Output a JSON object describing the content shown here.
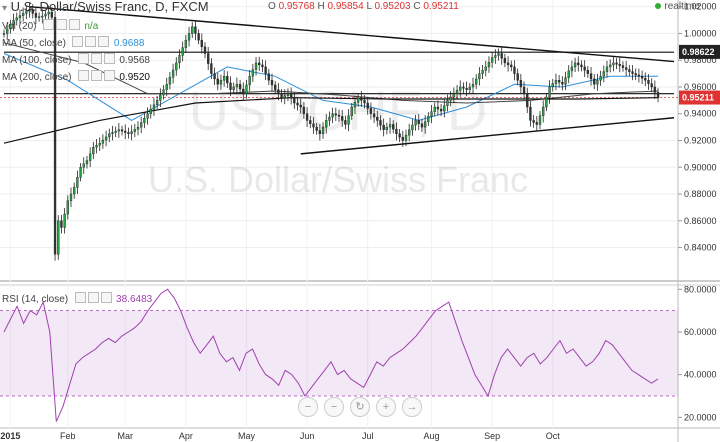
{
  "header": {
    "symbol_line": "U.S. Dollar/Swiss Franc, D, FXCM",
    "ohlc": [
      {
        "k": "O",
        "v": "0.95768"
      },
      {
        "k": "H",
        "v": "0.95854"
      },
      {
        "k": "L",
        "v": "0.95203"
      },
      {
        "k": "C",
        "v": "0.95211"
      }
    ],
    "realtime": "realtime"
  },
  "indicators": [
    {
      "label": "Vol (20)",
      "value": "n/a",
      "color": "#3a9a3a"
    },
    {
      "label": "MA (50, close)",
      "value": "0.9688",
      "color": "#2f8fd8"
    },
    {
      "label": "MA (100, close)",
      "value": "0.9568",
      "color": "#444444"
    },
    {
      "label": "MA (200, close)",
      "value": "0.9520",
      "color": "#111111"
    }
  ],
  "rsi": {
    "label": "RSI (14, close)",
    "value": "38.6483",
    "color": "#a040b0"
  },
  "watermark": {
    "symbol": "USDCHF, D",
    "name": "U.S. Dollar/Swiss Franc"
  },
  "last_price_tag": "0.95211",
  "resistance_tag": "0.98622",
  "nav_buttons": [
    "−",
    "−",
    "↻",
    "+",
    "→"
  ],
  "chart_data": [
    {
      "type": "candlestick",
      "title": "U.S. Dollar/Swiss Franc, D, FXCM",
      "x_axis_labels": [
        "2015",
        "Feb",
        "Mar",
        "Apr",
        "May",
        "Jun",
        "Jul",
        "Aug",
        "Sep",
        "Oct"
      ],
      "y_ticks": [
        "1.02000",
        "1.00000",
        "0.98000",
        "0.96000",
        "0.94000",
        "0.92000",
        "0.90000",
        "0.88000",
        "0.86000",
        "0.84000"
      ],
      "ylim": [
        0.815,
        1.025
      ],
      "path": [
        [
          0,
          1.0
        ],
        [
          3,
          1.01
        ],
        [
          6,
          1.015
        ],
        [
          8,
          1.018
        ],
        [
          10,
          1.012
        ],
        [
          12,
          1.013
        ],
        [
          14,
          1.016
        ],
        [
          15,
          1.012
        ],
        [
          16,
          0.835
        ],
        [
          17,
          0.86
        ],
        [
          18,
          0.855
        ],
        [
          20,
          0.875
        ],
        [
          22,
          0.885
        ],
        [
          24,
          0.9
        ],
        [
          26,
          0.905
        ],
        [
          28,
          0.915
        ],
        [
          30,
          0.918
        ],
        [
          33,
          0.925
        ],
        [
          36,
          0.928
        ],
        [
          39,
          0.925
        ],
        [
          42,
          0.93
        ],
        [
          45,
          0.94
        ],
        [
          48,
          0.95
        ],
        [
          51,
          0.962
        ],
        [
          54,
          0.978
        ],
        [
          57,
          0.995
        ],
        [
          59,
          1.005
        ],
        [
          61,
          0.995
        ],
        [
          63,
          0.985
        ],
        [
          65,
          0.97
        ],
        [
          67,
          0.962
        ],
        [
          69,
          0.968
        ],
        [
          71,
          0.958
        ],
        [
          73,
          0.962
        ],
        [
          75,
          0.955
        ],
        [
          77,
          0.968
        ],
        [
          79,
          0.978
        ],
        [
          81,
          0.975
        ],
        [
          83,
          0.965
        ],
        [
          85,
          0.958
        ],
        [
          87,
          0.952
        ],
        [
          89,
          0.955
        ],
        [
          91,
          0.948
        ],
        [
          93,
          0.945
        ],
        [
          95,
          0.935
        ],
        [
          97,
          0.93
        ],
        [
          99,
          0.925
        ],
        [
          101,
          0.935
        ],
        [
          103,
          0.94
        ],
        [
          105,
          0.938
        ],
        [
          107,
          0.932
        ],
        [
          109,
          0.945
        ],
        [
          111,
          0.952
        ],
        [
          113,
          0.948
        ],
        [
          115,
          0.94
        ],
        [
          117,
          0.935
        ],
        [
          119,
          0.928
        ],
        [
          121,
          0.932
        ],
        [
          123,
          0.925
        ],
        [
          125,
          0.92
        ],
        [
          127,
          0.928
        ],
        [
          129,
          0.935
        ],
        [
          131,
          0.93
        ],
        [
          133,
          0.938
        ],
        [
          135,
          0.945
        ],
        [
          137,
          0.942
        ],
        [
          139,
          0.95
        ],
        [
          141,
          0.955
        ],
        [
          143,
          0.96
        ],
        [
          145,
          0.958
        ],
        [
          147,
          0.962
        ],
        [
          149,
          0.97
        ],
        [
          151,
          0.975
        ],
        [
          153,
          0.982
        ],
        [
          155,
          0.985
        ],
        [
          157,
          0.978
        ],
        [
          159,
          0.975
        ],
        [
          161,
          0.965
        ],
        [
          163,
          0.955
        ],
        [
          165,
          0.935
        ],
        [
          167,
          0.932
        ],
        [
          169,
          0.945
        ],
        [
          171,
          0.96
        ],
        [
          173,
          0.965
        ],
        [
          175,
          0.962
        ],
        [
          177,
          0.972
        ],
        [
          179,
          0.978
        ],
        [
          181,
          0.975
        ],
        [
          183,
          0.97
        ],
        [
          185,
          0.962
        ],
        [
          187,
          0.968
        ],
        [
          189,
          0.975
        ],
        [
          191,
          0.978
        ],
        [
          193,
          0.976
        ],
        [
          195,
          0.973
        ],
        [
          197,
          0.97
        ],
        [
          199,
          0.968
        ],
        [
          201,
          0.965
        ],
        [
          203,
          0.96
        ],
        [
          205,
          0.952
        ]
      ],
      "ma": [
        {
          "name": "MA (50, close)",
          "color": "#2f8fd8",
          "points": [
            [
              0,
              0.985
            ],
            [
              20,
              0.965
            ],
            [
              40,
              0.935
            ],
            [
              55,
              0.955
            ],
            [
              70,
              0.975
            ],
            [
              85,
              0.968
            ],
            [
              100,
              0.95
            ],
            [
              115,
              0.945
            ],
            [
              130,
              0.935
            ],
            [
              145,
              0.945
            ],
            [
              160,
              0.962
            ],
            [
              175,
              0.96
            ],
            [
              190,
              0.968
            ],
            [
              205,
              0.968
            ]
          ]
        },
        {
          "name": "MA (100, close)",
          "color": "#444444",
          "points": [
            [
              0,
              0.993
            ],
            [
              25,
              0.978
            ],
            [
              45,
              0.955
            ],
            [
              65,
              0.955
            ],
            [
              85,
              0.957
            ],
            [
              105,
              0.954
            ],
            [
              125,
              0.95
            ],
            [
              145,
              0.948
            ],
            [
              165,
              0.95
            ],
            [
              185,
              0.955
            ],
            [
              205,
              0.957
            ]
          ]
        },
        {
          "name": "MA (200, close)",
          "color": "#111111",
          "points": [
            [
              0,
              0.918
            ],
            [
              30,
              0.935
            ],
            [
              60,
              0.948
            ],
            [
              90,
              0.952
            ],
            [
              120,
              0.951
            ],
            [
              150,
              0.951
            ],
            [
              180,
              0.951
            ],
            [
              205,
              0.952
            ]
          ]
        }
      ],
      "trendlines": [
        {
          "kind": "resistance_diag",
          "from": [
            8,
            1.02
          ],
          "to": [
            210,
            0.979
          ]
        },
        {
          "kind": "support_diag",
          "from": [
            93,
            0.91
          ],
          "to": [
            210,
            0.937
          ]
        },
        {
          "kind": "horizontal",
          "from": [
            0,
            0.986
          ],
          "to": [
            210,
            0.986
          ]
        },
        {
          "kind": "horizontal",
          "from": [
            0,
            0.955
          ],
          "to": [
            210,
            0.955
          ]
        }
      ]
    },
    {
      "type": "line",
      "title": "RSI (14, close)",
      "y_ticks": [
        "80.0000",
        "60.0000",
        "40.0000",
        "20.0000"
      ],
      "ylim": [
        15,
        82
      ],
      "band": [
        30,
        70
      ],
      "series": [
        {
          "values": [
            60,
            66,
            72,
            64,
            70,
            68,
            74,
            60,
            18,
            25,
            35,
            45,
            48,
            50,
            52,
            55,
            57,
            55,
            58,
            60,
            62,
            65,
            70,
            74,
            78,
            80,
            76,
            70,
            62,
            55,
            50,
            54,
            58,
            50,
            46,
            48,
            42,
            50,
            52,
            45,
            40,
            38,
            35,
            42,
            40,
            36,
            30,
            34,
            38,
            42,
            46,
            40,
            42,
            38,
            36,
            34,
            40,
            46,
            44,
            48,
            50,
            52,
            55,
            58,
            62,
            66,
            70,
            72,
            74,
            65,
            56,
            48,
            40,
            35,
            30,
            40,
            48,
            52,
            48,
            44,
            48,
            50,
            45,
            48,
            52,
            56,
            50,
            52,
            48,
            44,
            46,
            50,
            56,
            54,
            50,
            46,
            42,
            40,
            38,
            36,
            38
          ]
        }
      ]
    }
  ]
}
